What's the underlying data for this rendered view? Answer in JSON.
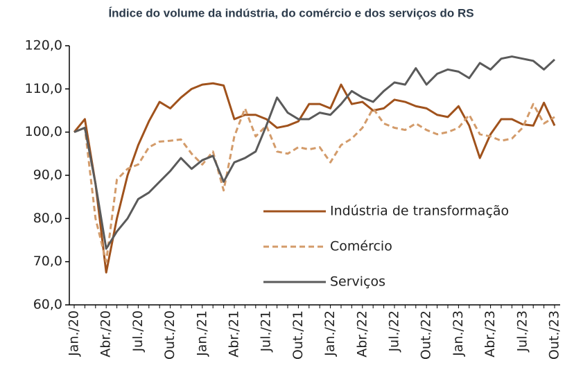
{
  "chart_data": {
    "type": "line",
    "title": "Índice do volume da indústria, do comércio e dos serviços do RS",
    "categories": [
      "Jan./20",
      null,
      null,
      "Abr./20",
      null,
      null,
      "Jul./20",
      null,
      null,
      "Out./20",
      null,
      null,
      "Jan./21",
      null,
      null,
      "Abr./21",
      null,
      null,
      "Jul./21",
      null,
      null,
      "Out./21",
      null,
      null,
      "Jan./22",
      null,
      null,
      "Abr./22",
      null,
      null,
      "Jul./22",
      null,
      null,
      "Out./22",
      null,
      null,
      "Jan./23",
      null,
      null,
      "Abr./23",
      null,
      null,
      "Jul./23",
      null,
      null,
      "Out./23"
    ],
    "series": [
      {
        "name": "Indústria de transformação",
        "color": "#a0521c",
        "dash": false,
        "values": [
          100,
          103,
          88,
          67.5,
          80,
          90,
          97,
          102.5,
          107,
          105.5,
          108,
          110,
          111,
          111.3,
          110.8,
          103,
          104,
          104,
          103,
          101,
          101.5,
          102.5,
          106.5,
          106.5,
          105.5,
          111,
          106.5,
          107,
          105,
          105.5,
          107.5,
          107,
          106,
          105.5,
          104,
          103.5,
          106,
          101.5,
          94,
          99.5,
          103,
          103,
          101.8,
          101.5,
          106.8,
          101.5
        ]
      },
      {
        "name": "Comércio",
        "color": "#d39b6a",
        "dash": true,
        "values": [
          100,
          101,
          80,
          70,
          89,
          91.5,
          92.5,
          96.5,
          97.8,
          98,
          98.3,
          95,
          92.5,
          95.5,
          86.5,
          99,
          105.5,
          99,
          101.5,
          95.5,
          95,
          96.5,
          96,
          96.5,
          93,
          97,
          98.5,
          101,
          105.5,
          102,
          101,
          100.5,
          102,
          100.5,
          99.5,
          100,
          101,
          104,
          99.5,
          99,
          98,
          98.5,
          101,
          106.5,
          102,
          103.5
        ]
      },
      {
        "name": "Serviços",
        "color": "#5a5a5a",
        "dash": false,
        "values": [
          100,
          101,
          88,
          73,
          77,
          80,
          84.5,
          86,
          88.5,
          91,
          94,
          91.5,
          93.5,
          94.5,
          88.5,
          93,
          94,
          95.5,
          101.5,
          108,
          104.5,
          103,
          103,
          104.5,
          104,
          106.5,
          109.5,
          108,
          107,
          109.5,
          111.5,
          111,
          114.8,
          111,
          113.5,
          114.5,
          114,
          112.5,
          116,
          114.5,
          117,
          117.5,
          117,
          116.5,
          114.5,
          116.8
        ]
      }
    ],
    "ylim": [
      60,
      120
    ],
    "yticks": [
      {
        "value": 60,
        "label": "60,0"
      },
      {
        "value": 70,
        "label": "70,0"
      },
      {
        "value": 80,
        "label": "80,0"
      },
      {
        "value": 90,
        "label": "90,0"
      },
      {
        "value": 100,
        "label": "100,0"
      },
      {
        "value": 110,
        "label": "110,0"
      },
      {
        "value": 120,
        "label": "120,0"
      }
    ],
    "legend": "lower-right"
  }
}
